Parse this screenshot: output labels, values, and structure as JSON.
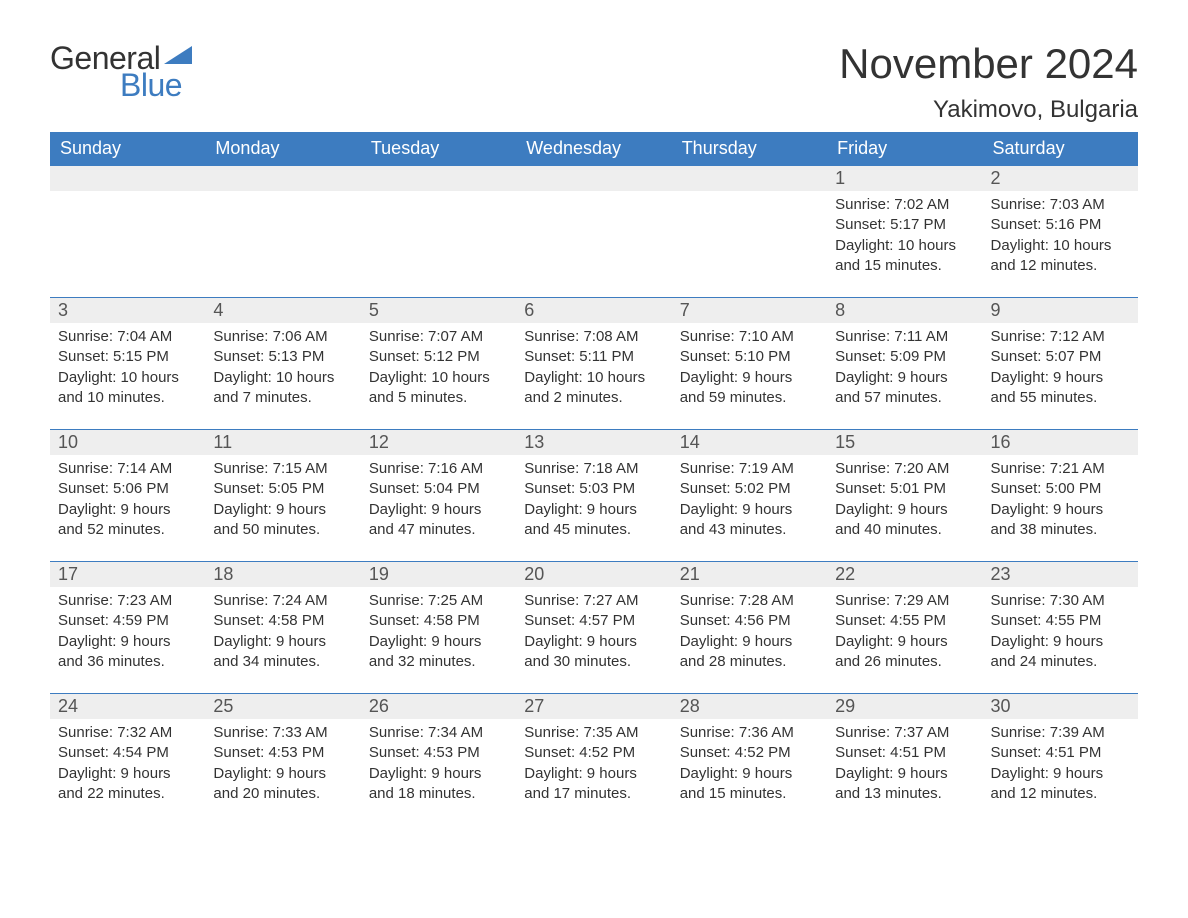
{
  "logo": {
    "text_general": "General",
    "text_blue": "Blue",
    "shape_color": "#3d7cc0"
  },
  "title": {
    "month_year": "November 2024",
    "location": "Yakimovo, Bulgaria"
  },
  "colors": {
    "header_bg": "#3d7cc0",
    "header_text": "#ffffff",
    "day_number_bg": "#eeeeee",
    "week_border": "#3d7cc0",
    "body_text": "#333333",
    "background": "#ffffff"
  },
  "fonts": {
    "month_title_size": 42,
    "location_size": 24,
    "day_header_size": 18,
    "day_number_size": 18,
    "content_size": 15
  },
  "day_headers": [
    "Sunday",
    "Monday",
    "Tuesday",
    "Wednesday",
    "Thursday",
    "Friday",
    "Saturday"
  ],
  "weeks": [
    [
      {
        "empty": true
      },
      {
        "empty": true
      },
      {
        "empty": true
      },
      {
        "empty": true
      },
      {
        "empty": true
      },
      {
        "day": "1",
        "sunrise": "Sunrise: 7:02 AM",
        "sunset": "Sunset: 5:17 PM",
        "daylight1": "Daylight: 10 hours",
        "daylight2": "and 15 minutes."
      },
      {
        "day": "2",
        "sunrise": "Sunrise: 7:03 AM",
        "sunset": "Sunset: 5:16 PM",
        "daylight1": "Daylight: 10 hours",
        "daylight2": "and 12 minutes."
      }
    ],
    [
      {
        "day": "3",
        "sunrise": "Sunrise: 7:04 AM",
        "sunset": "Sunset: 5:15 PM",
        "daylight1": "Daylight: 10 hours",
        "daylight2": "and 10 minutes."
      },
      {
        "day": "4",
        "sunrise": "Sunrise: 7:06 AM",
        "sunset": "Sunset: 5:13 PM",
        "daylight1": "Daylight: 10 hours",
        "daylight2": "and 7 minutes."
      },
      {
        "day": "5",
        "sunrise": "Sunrise: 7:07 AM",
        "sunset": "Sunset: 5:12 PM",
        "daylight1": "Daylight: 10 hours",
        "daylight2": "and 5 minutes."
      },
      {
        "day": "6",
        "sunrise": "Sunrise: 7:08 AM",
        "sunset": "Sunset: 5:11 PM",
        "daylight1": "Daylight: 10 hours",
        "daylight2": "and 2 minutes."
      },
      {
        "day": "7",
        "sunrise": "Sunrise: 7:10 AM",
        "sunset": "Sunset: 5:10 PM",
        "daylight1": "Daylight: 9 hours",
        "daylight2": "and 59 minutes."
      },
      {
        "day": "8",
        "sunrise": "Sunrise: 7:11 AM",
        "sunset": "Sunset: 5:09 PM",
        "daylight1": "Daylight: 9 hours",
        "daylight2": "and 57 minutes."
      },
      {
        "day": "9",
        "sunrise": "Sunrise: 7:12 AM",
        "sunset": "Sunset: 5:07 PM",
        "daylight1": "Daylight: 9 hours",
        "daylight2": "and 55 minutes."
      }
    ],
    [
      {
        "day": "10",
        "sunrise": "Sunrise: 7:14 AM",
        "sunset": "Sunset: 5:06 PM",
        "daylight1": "Daylight: 9 hours",
        "daylight2": "and 52 minutes."
      },
      {
        "day": "11",
        "sunrise": "Sunrise: 7:15 AM",
        "sunset": "Sunset: 5:05 PM",
        "daylight1": "Daylight: 9 hours",
        "daylight2": "and 50 minutes."
      },
      {
        "day": "12",
        "sunrise": "Sunrise: 7:16 AM",
        "sunset": "Sunset: 5:04 PM",
        "daylight1": "Daylight: 9 hours",
        "daylight2": "and 47 minutes."
      },
      {
        "day": "13",
        "sunrise": "Sunrise: 7:18 AM",
        "sunset": "Sunset: 5:03 PM",
        "daylight1": "Daylight: 9 hours",
        "daylight2": "and 45 minutes."
      },
      {
        "day": "14",
        "sunrise": "Sunrise: 7:19 AM",
        "sunset": "Sunset: 5:02 PM",
        "daylight1": "Daylight: 9 hours",
        "daylight2": "and 43 minutes."
      },
      {
        "day": "15",
        "sunrise": "Sunrise: 7:20 AM",
        "sunset": "Sunset: 5:01 PM",
        "daylight1": "Daylight: 9 hours",
        "daylight2": "and 40 minutes."
      },
      {
        "day": "16",
        "sunrise": "Sunrise: 7:21 AM",
        "sunset": "Sunset: 5:00 PM",
        "daylight1": "Daylight: 9 hours",
        "daylight2": "and 38 minutes."
      }
    ],
    [
      {
        "day": "17",
        "sunrise": "Sunrise: 7:23 AM",
        "sunset": "Sunset: 4:59 PM",
        "daylight1": "Daylight: 9 hours",
        "daylight2": "and 36 minutes."
      },
      {
        "day": "18",
        "sunrise": "Sunrise: 7:24 AM",
        "sunset": "Sunset: 4:58 PM",
        "daylight1": "Daylight: 9 hours",
        "daylight2": "and 34 minutes."
      },
      {
        "day": "19",
        "sunrise": "Sunrise: 7:25 AM",
        "sunset": "Sunset: 4:58 PM",
        "daylight1": "Daylight: 9 hours",
        "daylight2": "and 32 minutes."
      },
      {
        "day": "20",
        "sunrise": "Sunrise: 7:27 AM",
        "sunset": "Sunset: 4:57 PM",
        "daylight1": "Daylight: 9 hours",
        "daylight2": "and 30 minutes."
      },
      {
        "day": "21",
        "sunrise": "Sunrise: 7:28 AM",
        "sunset": "Sunset: 4:56 PM",
        "daylight1": "Daylight: 9 hours",
        "daylight2": "and 28 minutes."
      },
      {
        "day": "22",
        "sunrise": "Sunrise: 7:29 AM",
        "sunset": "Sunset: 4:55 PM",
        "daylight1": "Daylight: 9 hours",
        "daylight2": "and 26 minutes."
      },
      {
        "day": "23",
        "sunrise": "Sunrise: 7:30 AM",
        "sunset": "Sunset: 4:55 PM",
        "daylight1": "Daylight: 9 hours",
        "daylight2": "and 24 minutes."
      }
    ],
    [
      {
        "day": "24",
        "sunrise": "Sunrise: 7:32 AM",
        "sunset": "Sunset: 4:54 PM",
        "daylight1": "Daylight: 9 hours",
        "daylight2": "and 22 minutes."
      },
      {
        "day": "25",
        "sunrise": "Sunrise: 7:33 AM",
        "sunset": "Sunset: 4:53 PM",
        "daylight1": "Daylight: 9 hours",
        "daylight2": "and 20 minutes."
      },
      {
        "day": "26",
        "sunrise": "Sunrise: 7:34 AM",
        "sunset": "Sunset: 4:53 PM",
        "daylight1": "Daylight: 9 hours",
        "daylight2": "and 18 minutes."
      },
      {
        "day": "27",
        "sunrise": "Sunrise: 7:35 AM",
        "sunset": "Sunset: 4:52 PM",
        "daylight1": "Daylight: 9 hours",
        "daylight2": "and 17 minutes."
      },
      {
        "day": "28",
        "sunrise": "Sunrise: 7:36 AM",
        "sunset": "Sunset: 4:52 PM",
        "daylight1": "Daylight: 9 hours",
        "daylight2": "and 15 minutes."
      },
      {
        "day": "29",
        "sunrise": "Sunrise: 7:37 AM",
        "sunset": "Sunset: 4:51 PM",
        "daylight1": "Daylight: 9 hours",
        "daylight2": "and 13 minutes."
      },
      {
        "day": "30",
        "sunrise": "Sunrise: 7:39 AM",
        "sunset": "Sunset: 4:51 PM",
        "daylight1": "Daylight: 9 hours",
        "daylight2": "and 12 minutes."
      }
    ]
  ]
}
